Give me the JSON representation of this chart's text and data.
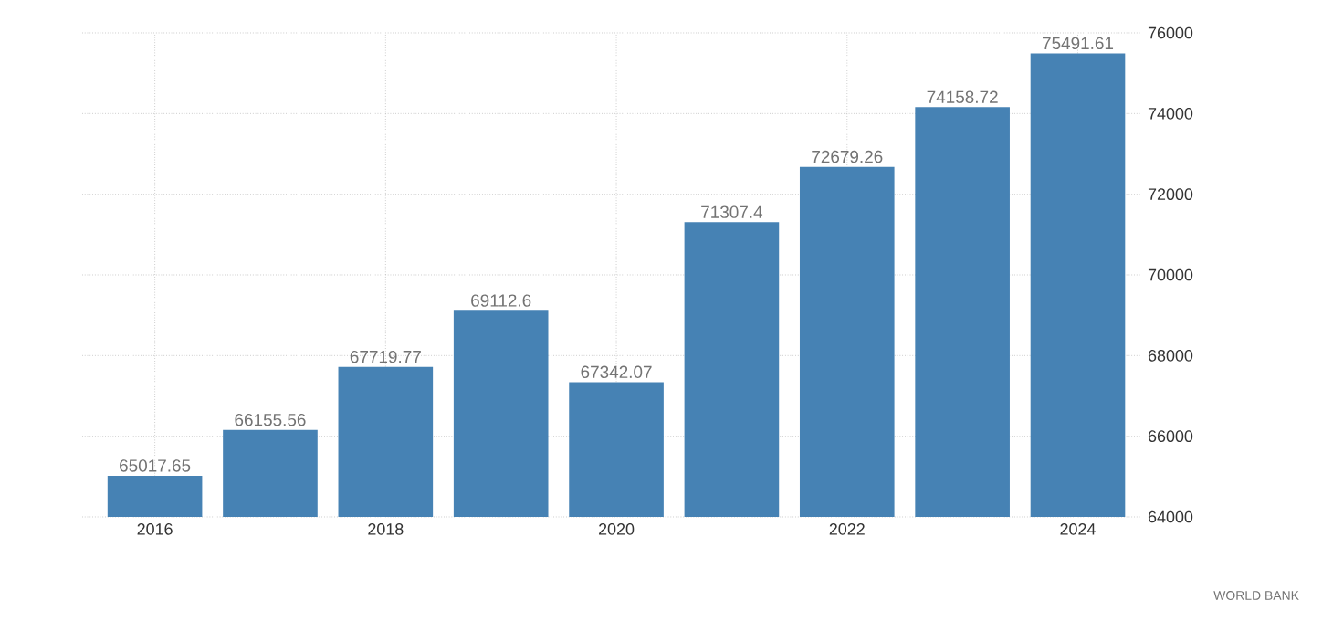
{
  "chart_data": {
    "type": "bar",
    "x": [
      2016,
      2017,
      2018,
      2019,
      2020,
      2021,
      2022,
      2023,
      2024
    ],
    "values": [
      65017.65,
      66155.56,
      67719.77,
      69112.6,
      67342.07,
      71307.4,
      72679.26,
      74158.72,
      75491.61
    ],
    "color": "#4682b4",
    "data_labels": true,
    "xlim": [
      2015.37,
      2024.55
    ],
    "xticks": [
      2016,
      2018,
      2020,
      2022,
      2024
    ],
    "ylim": [
      64000,
      76000
    ],
    "yticks": [
      64000,
      66000,
      68000,
      70000,
      72000,
      74000,
      76000
    ],
    "grid": true,
    "annotations": [
      "WORLD BANK"
    ]
  }
}
